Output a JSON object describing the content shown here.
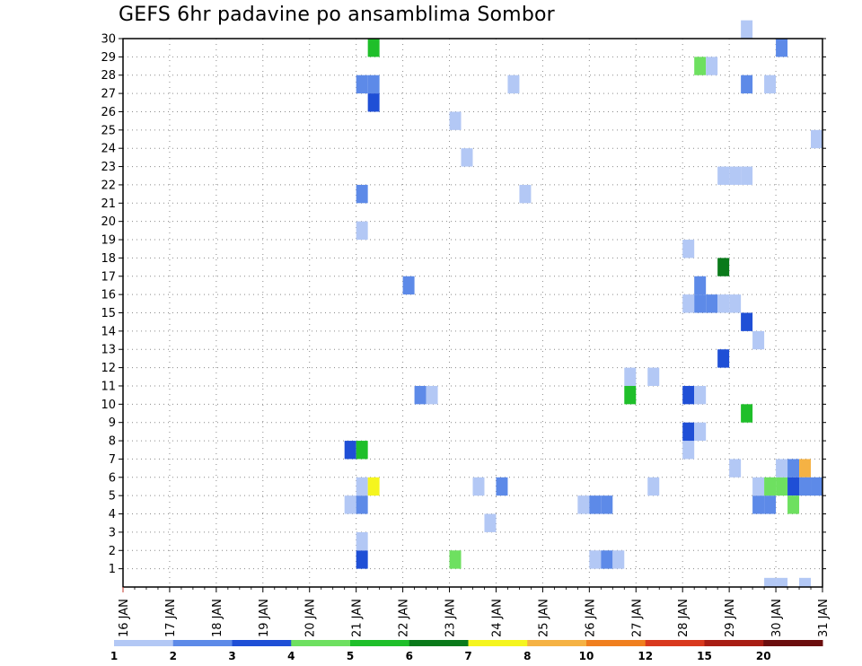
{
  "chart_data": {
    "type": "heatmap",
    "title": "GEFS 6hr padavine po ansamblima Sombor",
    "xlabel": "",
    "ylabel": "",
    "x_ticks": [
      "16 JAN",
      "17 JAN",
      "18 JAN",
      "19 JAN",
      "20 JAN",
      "21 JAN",
      "22 JAN",
      "23 JAN",
      "24 JAN",
      "25 JAN",
      "26 JAN",
      "27 JAN",
      "28 JAN",
      "29 JAN",
      "30 JAN",
      "31 JAN"
    ],
    "x_range": [
      0,
      60
    ],
    "y_ticks": [
      "1",
      "2",
      "3",
      "4",
      "5",
      "6",
      "7",
      "8",
      "9",
      "10",
      "11",
      "12",
      "13",
      "14",
      "15",
      "16",
      "17",
      "18",
      "19",
      "20",
      "21",
      "22",
      "23",
      "24",
      "25",
      "26",
      "27",
      "28",
      "29",
      "30"
    ],
    "y_range": [
      0,
      30
    ],
    "grid": true,
    "colorbar": {
      "placement": "bottom",
      "labels": [
        "1",
        "2",
        "3",
        "4",
        "5",
        "6",
        "7",
        "8",
        "10",
        "12",
        "15",
        "20"
      ],
      "colors": [
        "#b3c8f5",
        "#5d8ae8",
        "#1f4fd6",
        "#6ee060",
        "#1fbf2a",
        "#0a7a1a",
        "#f5f51e",
        "#f5b244",
        "#f07f1f",
        "#d9391e",
        "#a81d14",
        "#6b0e0e"
      ]
    },
    "cells": [
      {
        "x": 20,
        "y": 1,
        "v": 3
      },
      {
        "x": 20,
        "y": 2,
        "v": 1
      },
      {
        "x": 19,
        "y": 4,
        "v": 1
      },
      {
        "x": 20,
        "y": 4,
        "v": 2
      },
      {
        "x": 20,
        "y": 5,
        "v": 1
      },
      {
        "x": 21,
        "y": 5,
        "v": 7
      },
      {
        "x": 19,
        "y": 7,
        "v": 3
      },
      {
        "x": 20,
        "y": 7,
        "v": 5
      },
      {
        "x": 20,
        "y": 19,
        "v": 1
      },
      {
        "x": 20,
        "y": 21,
        "v": 2
      },
      {
        "x": 20,
        "y": 27,
        "v": 2
      },
      {
        "x": 21,
        "y": 27,
        "v": 2
      },
      {
        "x": 21,
        "y": 26,
        "v": 3
      },
      {
        "x": 21,
        "y": 29,
        "v": 5
      },
      {
        "x": 24,
        "y": 16,
        "v": 2
      },
      {
        "x": 25,
        "y": 10,
        "v": 2
      },
      {
        "x": 26,
        "y": 10,
        "v": 1
      },
      {
        "x": 28,
        "y": 1,
        "v": 4
      },
      {
        "x": 28,
        "y": 25,
        "v": 1
      },
      {
        "x": 29,
        "y": 23,
        "v": 1
      },
      {
        "x": 30,
        "y": 5,
        "v": 1
      },
      {
        "x": 31,
        "y": 3,
        "v": 1
      },
      {
        "x": 32,
        "y": 5,
        "v": 2
      },
      {
        "x": 33,
        "y": 27,
        "v": 1
      },
      {
        "x": 34,
        "y": 21,
        "v": 1
      },
      {
        "x": 39,
        "y": 4,
        "v": 1
      },
      {
        "x": 40,
        "y": 4,
        "v": 2
      },
      {
        "x": 41,
        "y": 4,
        "v": 2
      },
      {
        "x": 40,
        "y": 1,
        "v": 1
      },
      {
        "x": 41,
        "y": 1,
        "v": 2
      },
      {
        "x": 42,
        "y": 1,
        "v": 1
      },
      {
        "x": 43,
        "y": 11,
        "v": 1
      },
      {
        "x": 43,
        "y": 10,
        "v": 5
      },
      {
        "x": 45,
        "y": 5,
        "v": 1
      },
      {
        "x": 45,
        "y": 11,
        "v": 1
      },
      {
        "x": 48,
        "y": 7,
        "v": 1
      },
      {
        "x": 48,
        "y": 8,
        "v": 3
      },
      {
        "x": 49,
        "y": 8,
        "v": 1
      },
      {
        "x": 48,
        "y": 10,
        "v": 3
      },
      {
        "x": 49,
        "y": 10,
        "v": 1
      },
      {
        "x": 48,
        "y": 15,
        "v": 1
      },
      {
        "x": 49,
        "y": 15,
        "v": 2
      },
      {
        "x": 50,
        "y": 15,
        "v": 2
      },
      {
        "x": 51,
        "y": 15,
        "v": 1
      },
      {
        "x": 52,
        "y": 15,
        "v": 1
      },
      {
        "x": 49,
        "y": 16,
        "v": 2
      },
      {
        "x": 51,
        "y": 17,
        "v": 6
      },
      {
        "x": 48,
        "y": 18,
        "v": 1
      },
      {
        "x": 49,
        "y": 28,
        "v": 4
      },
      {
        "x": 50,
        "y": 28,
        "v": 1
      },
      {
        "x": 51,
        "y": 12,
        "v": 3
      },
      {
        "x": 51,
        "y": 22,
        "v": 1
      },
      {
        "x": 52,
        "y": 22,
        "v": 1
      },
      {
        "x": 53,
        "y": 22,
        "v": 1
      },
      {
        "x": 52,
        "y": 6,
        "v": 1
      },
      {
        "x": 53,
        "y": 9,
        "v": 5
      },
      {
        "x": 53,
        "y": 14,
        "v": 3
      },
      {
        "x": 53,
        "y": 27,
        "v": 2
      },
      {
        "x": 53,
        "y": 30,
        "v": 1
      },
      {
        "x": 54,
        "y": 13,
        "v": 1
      },
      {
        "x": 54,
        "y": 4,
        "v": 2
      },
      {
        "x": 55,
        "y": 4,
        "v": 2
      },
      {
        "x": 54,
        "y": 5,
        "v": 1
      },
      {
        "x": 55,
        "y": 5,
        "v": 4
      },
      {
        "x": 56,
        "y": 5,
        "v": 4
      },
      {
        "x": 55,
        "y": 27,
        "v": 1
      },
      {
        "x": 55,
        "y": 0,
        "v": 1
      },
      {
        "x": 56,
        "y": 0,
        "v": 1
      },
      {
        "x": 56,
        "y": 6,
        "v": 1
      },
      {
        "x": 56,
        "y": 29,
        "v": 2
      },
      {
        "x": 57,
        "y": 6,
        "v": 2
      },
      {
        "x": 57,
        "y": 5,
        "v": 3
      },
      {
        "x": 57,
        "y": 4,
        "v": 4
      },
      {
        "x": 58,
        "y": 6,
        "v": 8
      },
      {
        "x": 58,
        "y": 5,
        "v": 2
      },
      {
        "x": 59,
        "y": 5,
        "v": 2
      },
      {
        "x": 58,
        "y": 0,
        "v": 1
      },
      {
        "x": 59,
        "y": 24,
        "v": 1
      }
    ]
  }
}
